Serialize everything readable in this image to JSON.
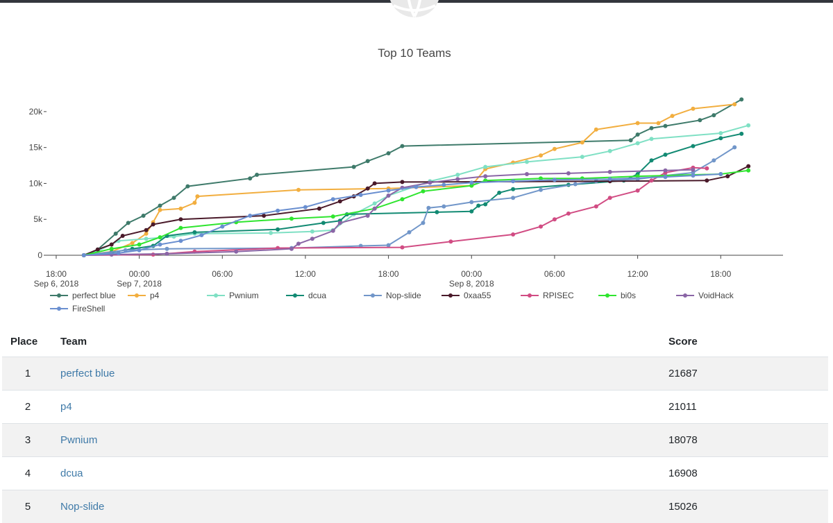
{
  "chart_data": {
    "type": "line",
    "title": "Top 10 Teams",
    "x_ticks": [
      {
        "label": "18:00",
        "sub": "Sep 6, 2018",
        "hours": 0
      },
      {
        "label": "00:00",
        "sub": "Sep 7, 2018",
        "hours": 6
      },
      {
        "label": "06:00",
        "sub": "",
        "hours": 12
      },
      {
        "label": "12:00",
        "sub": "",
        "hours": 18
      },
      {
        "label": "18:00",
        "sub": "",
        "hours": 24
      },
      {
        "label": "00:00",
        "sub": "Sep 8, 2018",
        "hours": 30
      },
      {
        "label": "06:00",
        "sub": "",
        "hours": 36
      },
      {
        "label": "12:00",
        "sub": "",
        "hours": 42
      },
      {
        "label": "18:00",
        "sub": "",
        "hours": 48
      }
    ],
    "y_ticks": [
      {
        "label": "0",
        "value": 0
      },
      {
        "label": "5k",
        "value": 5000
      },
      {
        "label": "10k",
        "value": 10000
      },
      {
        "label": "15k",
        "value": 15000
      },
      {
        "label": "20k",
        "value": 20000
      }
    ],
    "xlim": [
      -0.8,
      52.5
    ],
    "ylim": [
      0,
      22500
    ],
    "grid": false,
    "legend_position": "bottom",
    "series": [
      {
        "name": "perfect blue",
        "color": "#3e7a6a",
        "points": [
          [
            2,
            0
          ],
          [
            3,
            800
          ],
          [
            4.3,
            3000
          ],
          [
            5.2,
            4500
          ],
          [
            6.3,
            5500
          ],
          [
            7.5,
            6900
          ],
          [
            8.5,
            8000
          ],
          [
            9.5,
            9600
          ],
          [
            14,
            10700
          ],
          [
            14.5,
            11200
          ],
          [
            21.5,
            12300
          ],
          [
            22.5,
            13100
          ],
          [
            24,
            14200
          ],
          [
            25,
            15200
          ],
          [
            41.5,
            16000
          ],
          [
            42,
            16800
          ],
          [
            43,
            17700
          ],
          [
            44,
            18000
          ],
          [
            46.5,
            18800
          ],
          [
            47.5,
            19500
          ],
          [
            49.5,
            21687
          ]
        ]
      },
      {
        "name": "p4",
        "color": "#f2ae3f",
        "points": [
          [
            2,
            0
          ],
          [
            4,
            500
          ],
          [
            5.5,
            1700
          ],
          [
            6.5,
            3000
          ],
          [
            7,
            4600
          ],
          [
            7.5,
            6300
          ],
          [
            9,
            6500
          ],
          [
            10,
            7300
          ],
          [
            10.2,
            8200
          ],
          [
            17.5,
            9100
          ],
          [
            24,
            9300
          ],
          [
            30,
            9700
          ],
          [
            31,
            12000
          ],
          [
            33,
            12900
          ],
          [
            35,
            13900
          ],
          [
            36,
            14800
          ],
          [
            38,
            15700
          ],
          [
            39,
            17500
          ],
          [
            42,
            18400
          ],
          [
            43.5,
            18400
          ],
          [
            44.5,
            19400
          ],
          [
            46,
            20400
          ],
          [
            49,
            21011
          ]
        ]
      },
      {
        "name": "Pwnium",
        "color": "#7fe0c4",
        "points": [
          [
            2,
            0
          ],
          [
            3,
            600
          ],
          [
            4.5,
            2000
          ],
          [
            6.5,
            2300
          ],
          [
            8.5,
            2600
          ],
          [
            10,
            3000
          ],
          [
            15.5,
            3100
          ],
          [
            18.5,
            3300
          ],
          [
            20,
            3500
          ],
          [
            21.5,
            5700
          ],
          [
            23,
            7200
          ],
          [
            24,
            8300
          ],
          [
            27,
            10300
          ],
          [
            29,
            11200
          ],
          [
            31,
            12300
          ],
          [
            34,
            13000
          ],
          [
            38,
            13700
          ],
          [
            40,
            14500
          ],
          [
            42,
            15600
          ],
          [
            43,
            16200
          ],
          [
            48,
            17000
          ],
          [
            50,
            18078
          ]
        ]
      },
      {
        "name": "dcua",
        "color": "#128a73",
        "points": [
          [
            2,
            0
          ],
          [
            4,
            400
          ],
          [
            5.5,
            900
          ],
          [
            7,
            1300
          ],
          [
            8,
            2700
          ],
          [
            10,
            3200
          ],
          [
            16,
            3600
          ],
          [
            19.3,
            4500
          ],
          [
            20.5,
            4800
          ],
          [
            21,
            5700
          ],
          [
            27.5,
            6000
          ],
          [
            30,
            6100
          ],
          [
            30.5,
            6900
          ],
          [
            31,
            7100
          ],
          [
            32,
            8700
          ],
          [
            33,
            9200
          ],
          [
            37,
            9800
          ],
          [
            41,
            10400
          ],
          [
            42,
            11300
          ],
          [
            43,
            13200
          ],
          [
            44,
            14000
          ],
          [
            46,
            15200
          ],
          [
            48,
            16300
          ],
          [
            49.5,
            16908
          ]
        ]
      },
      {
        "name": "Nop-slide",
        "color": "#7196c9",
        "points": [
          [
            2,
            0
          ],
          [
            5,
            700
          ],
          [
            8,
            900
          ],
          [
            17,
            1000
          ],
          [
            22,
            1300
          ],
          [
            24,
            1400
          ],
          [
            25.5,
            3200
          ],
          [
            26.5,
            4500
          ],
          [
            26.9,
            6600
          ],
          [
            28,
            6800
          ],
          [
            30,
            7400
          ],
          [
            33,
            8000
          ],
          [
            35,
            9100
          ],
          [
            37.5,
            9900
          ],
          [
            39,
            10300
          ],
          [
            42,
            10600
          ],
          [
            44,
            11100
          ],
          [
            46,
            11500
          ],
          [
            47.5,
            13200
          ],
          [
            49,
            15026
          ]
        ]
      },
      {
        "name": "0xaa55",
        "color": "#4a1a2a",
        "points": [
          [
            2,
            0
          ],
          [
            3,
            800
          ],
          [
            4,
            1500
          ],
          [
            4.8,
            2700
          ],
          [
            6.5,
            3500
          ],
          [
            7,
            4300
          ],
          [
            9,
            5000
          ],
          [
            15,
            5500
          ],
          [
            19,
            6500
          ],
          [
            20.5,
            7500
          ],
          [
            21.5,
            8200
          ],
          [
            22.5,
            9300
          ],
          [
            23,
            10000
          ],
          [
            25,
            10200
          ],
          [
            40,
            10300
          ],
          [
            47,
            10400
          ],
          [
            48.5,
            11000
          ],
          [
            50,
            12400
          ]
        ]
      },
      {
        "name": "RPISEC",
        "color": "#d14c83",
        "points": [
          [
            2,
            0
          ],
          [
            7,
            100
          ],
          [
            10,
            500
          ],
          [
            16,
            1000
          ],
          [
            25,
            1100
          ],
          [
            28.5,
            1900
          ],
          [
            33,
            2900
          ],
          [
            35,
            4000
          ],
          [
            36,
            5000
          ],
          [
            37,
            5800
          ],
          [
            39,
            6800
          ],
          [
            40,
            8000
          ],
          [
            42,
            9000
          ],
          [
            43,
            10400
          ],
          [
            44,
            11500
          ],
          [
            46,
            12200
          ],
          [
            47,
            12100
          ]
        ]
      },
      {
        "name": "bi0s",
        "color": "#2fe52f",
        "points": [
          [
            2,
            0
          ],
          [
            4,
            900
          ],
          [
            6,
            1500
          ],
          [
            7.5,
            2500
          ],
          [
            9,
            3800
          ],
          [
            13,
            4600
          ],
          [
            17,
            5100
          ],
          [
            20,
            5400
          ],
          [
            23,
            6500
          ],
          [
            25,
            7800
          ],
          [
            26.5,
            8900
          ],
          [
            30,
            9700
          ],
          [
            31,
            10400
          ],
          [
            35,
            10700
          ],
          [
            38,
            10700
          ],
          [
            42,
            11000
          ],
          [
            48,
            11300
          ],
          [
            50,
            11800
          ]
        ]
      },
      {
        "name": "VoidHack",
        "color": "#8a65a6",
        "points": [
          [
            2,
            0
          ],
          [
            4,
            100
          ],
          [
            8,
            200
          ],
          [
            13,
            500
          ],
          [
            17,
            900
          ],
          [
            17.5,
            1600
          ],
          [
            18.5,
            2300
          ],
          [
            20,
            3400
          ],
          [
            20.5,
            4500
          ],
          [
            22.5,
            5500
          ],
          [
            23,
            6500
          ],
          [
            24,
            8300
          ],
          [
            25,
            9400
          ],
          [
            27,
            10100
          ],
          [
            29,
            10600
          ],
          [
            31,
            11000
          ],
          [
            34,
            11300
          ],
          [
            37,
            11400
          ],
          [
            40,
            11600
          ],
          [
            44,
            11800
          ],
          [
            46,
            11900
          ]
        ]
      },
      {
        "name": "FireShell",
        "color": "#6a8fd0",
        "points": [
          [
            2,
            0
          ],
          [
            4.5,
            300
          ],
          [
            6,
            700
          ],
          [
            7.5,
            1500
          ],
          [
            9,
            2000
          ],
          [
            10.5,
            2800
          ],
          [
            12,
            4000
          ],
          [
            14,
            5500
          ],
          [
            16,
            6200
          ],
          [
            18,
            6700
          ],
          [
            20,
            7800
          ],
          [
            22,
            8400
          ],
          [
            24,
            9000
          ],
          [
            26,
            9500
          ],
          [
            28,
            9800
          ],
          [
            30,
            10100
          ],
          [
            33,
            10300
          ],
          [
            36,
            10500
          ],
          [
            40,
            10600
          ],
          [
            44,
            10900
          ],
          [
            46,
            11100
          ],
          [
            48,
            11300
          ]
        ]
      }
    ]
  },
  "scoreboard": {
    "headers": {
      "place": "Place",
      "team": "Team",
      "score": "Score"
    },
    "rows": [
      {
        "place": "1",
        "team": "perfect blue",
        "score": "21687"
      },
      {
        "place": "2",
        "team": "p4",
        "score": "21011"
      },
      {
        "place": "3",
        "team": "Pwnium",
        "score": "18078"
      },
      {
        "place": "4",
        "team": "dcua",
        "score": "16908"
      },
      {
        "place": "5",
        "team": "Nop-slide",
        "score": "15026"
      }
    ]
  }
}
